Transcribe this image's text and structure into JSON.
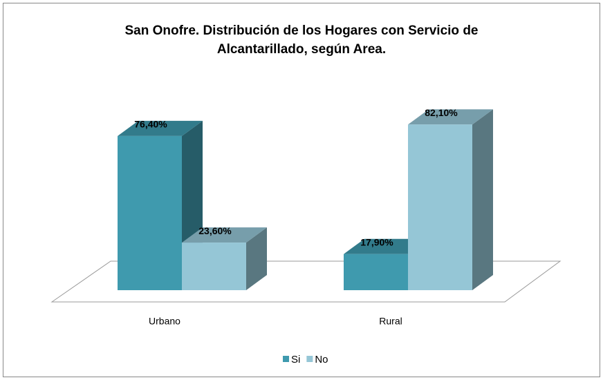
{
  "chart_data": {
    "type": "bar3d",
    "title": [
      "San Onofre. Distribución de los Hogares con Servicio de",
      "Alcantarillado, según Area."
    ],
    "categories": [
      "Urbano",
      "Rural"
    ],
    "series": [
      {
        "name": "Si",
        "color": "#3f9aae",
        "values": [
          76.4,
          17.9
        ],
        "value_labels": [
          "76,40%",
          "17,90%"
        ]
      },
      {
        "name": "No",
        "color": "#95c6d6",
        "values": [
          23.6,
          82.1
        ],
        "value_labels": [
          "23,60%",
          "82,10%"
        ]
      }
    ],
    "legend": "bottom"
  }
}
